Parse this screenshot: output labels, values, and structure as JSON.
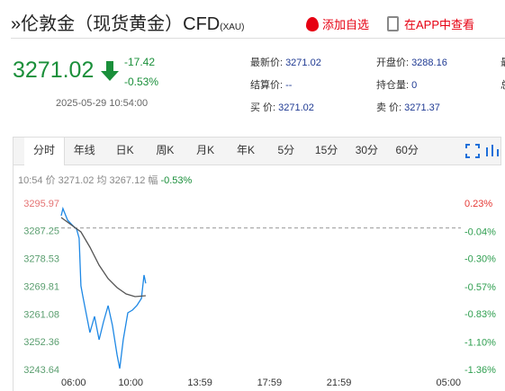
{
  "header": {
    "title": "»伦敦金（现货黄金）CFD",
    "code": "(XAU)",
    "add_watch": "添加自选",
    "open_app": "在APP中查看"
  },
  "quote": {
    "price": "3271.02",
    "change": "-17.42",
    "change_pct": "-0.53%",
    "time": "2025-05-29 10:54:00"
  },
  "fields": [
    {
      "label": "最新价:",
      "value": "3271.02"
    },
    {
      "label": "开盘价:",
      "value": "3288.16"
    },
    {
      "label": "最",
      "value": null
    },
    {
      "label": "结算价:",
      "value": "--"
    },
    {
      "label": "持仓量:",
      "value": "0"
    },
    {
      "label": "总",
      "value": null
    },
    {
      "label": "买  价:",
      "value": "3271.02"
    },
    {
      "label": "卖  价:",
      "value": "3271.37"
    }
  ],
  "tabs": [
    "分时",
    "年线",
    "日K",
    "周K",
    "月K",
    "年K",
    "5分",
    "15分",
    "30分",
    "60分"
  ],
  "info": {
    "time": "10:54",
    "price_label": "价",
    "price": "3271.02",
    "avg_label": "均",
    "avg": "3267.12",
    "pct_label": "幅",
    "pct": "-0.53%"
  },
  "chart": {
    "type": "line",
    "xlim": [
      0,
      1380
    ],
    "xticks": [
      {
        "value": 0,
        "label": "06:00"
      },
      {
        "value": 240,
        "label": "10:00"
      },
      {
        "value": 479,
        "label": "13:59"
      },
      {
        "value": 719,
        "label": "17:59"
      },
      {
        "value": 959,
        "label": "21:59"
      },
      {
        "value": 1380,
        "label": "05:00"
      }
    ],
    "ylim": [
      3243.64,
      3295.97
    ],
    "yticks": [
      3295.97,
      3287.25,
      3278.53,
      3269.81,
      3261.08,
      3252.36,
      3243.64
    ],
    "y2lim": [
      -1.36,
      0.23
    ],
    "y2ticks": [
      {
        "value": 0.23,
        "label": "0.23%"
      },
      {
        "value": -0.04,
        "label": "-0.04%"
      },
      {
        "value": -0.3,
        "label": "-0.30%"
      },
      {
        "value": -0.57,
        "label": "-0.57%"
      },
      {
        "value": -0.83,
        "label": "-0.83%"
      },
      {
        "value": -1.1,
        "label": "-1.10%"
      },
      {
        "value": -1.36,
        "label": "-1.36%"
      }
    ],
    "baseline": 3288.44,
    "series": [
      {
        "color": "#1e88e5",
        "x": [
          0,
          6,
          22,
          37,
          53,
          62,
          68,
          75,
          84,
          99,
          115,
          131,
          146,
          162,
          177,
          193,
          202,
          214,
          230,
          246,
          261,
          277,
          286,
          292
        ],
        "values": [
          3292.29,
          3294.56,
          3290.88,
          3289.46,
          3288.05,
          3285.22,
          3270.23,
          3266.84,
          3262.59,
          3255.52,
          3260.61,
          3253.26,
          3258.92,
          3264.01,
          3257.79,
          3248.45,
          3244.21,
          3253.26,
          3261.74,
          3262.59,
          3264.01,
          3266.27,
          3273.62,
          3271.02
        ]
      },
      {
        "color": "#555555",
        "x": [
          0,
          68,
          99,
          131,
          162,
          193,
          224,
          255,
          292
        ],
        "values": [
          3291.73,
          3287.2,
          3282.39,
          3276.73,
          3272.49,
          3269.66,
          3267.68,
          3266.83,
          3267.12
        ]
      }
    ]
  }
}
